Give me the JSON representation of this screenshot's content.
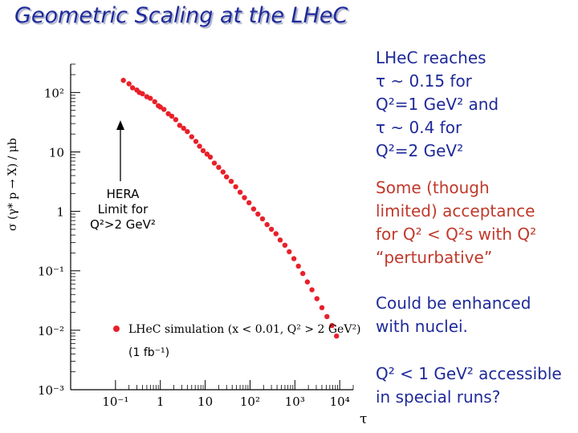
{
  "title": "Geometric Scaling at the LHeC",
  "notes": {
    "reach_lines": [
      "LHeC reaches",
      "τ ~ 0.15 for",
      "Q²=1 GeV² and",
      "τ ~ 0.4 for",
      "Q²=2 GeV²"
    ],
    "acceptance_lines": [
      "Some (though",
      "limited) acceptance",
      "for Q² < Q²s with Q²",
      "“perturbative”"
    ],
    "nuclei_lines": [
      "Could be enhanced",
      "with nuclei."
    ],
    "special_runs_lines": [
      "Q² < 1 GeV² accessible",
      "in special runs?"
    ]
  },
  "hera_label_lines": [
    "HERA",
    "Limit for",
    "Q²>2 GeV²"
  ],
  "luminosity_label": "(1 fb⁻¹)",
  "colors": {
    "title": "#1f2a9a",
    "accent_red": "#c0392b",
    "markers": "#e8202a"
  },
  "chart_data": {
    "type": "scatter",
    "xlabel": "τ",
    "ylabel": "σ (γ* p → X) / μb",
    "xscale": "log",
    "yscale": "log",
    "xlim": [
      0.01,
      20000
    ],
    "ylim": [
      0.001,
      300
    ],
    "x_ticks": [
      "10⁻¹",
      "1",
      "10",
      "10²",
      "10³",
      "10⁴"
    ],
    "y_ticks": [
      "10⁻³",
      "10⁻²",
      "10⁻¹",
      "1",
      "10",
      "10²"
    ],
    "legend": {
      "label": "LHeC simulation (x < 0.01, Q² > 2 GeV²)",
      "position": "bottom-left"
    },
    "series": [
      {
        "name": "LHeC simulation (x < 0.01, Q² > 2 GeV²)",
        "points": [
          [
            0.15,
            160
          ],
          [
            0.2,
            140
          ],
          [
            0.24,
            120
          ],
          [
            0.3,
            110
          ],
          [
            0.34,
            100
          ],
          [
            0.4,
            95
          ],
          [
            0.5,
            85
          ],
          [
            0.6,
            80
          ],
          [
            0.75,
            70
          ],
          [
            0.9,
            60
          ],
          [
            1.0,
            57
          ],
          [
            1.2,
            52
          ],
          [
            1.5,
            44
          ],
          [
            1.8,
            40
          ],
          [
            2.2,
            35
          ],
          [
            2.7,
            28
          ],
          [
            3.3,
            25
          ],
          [
            4.0,
            22
          ],
          [
            5.0,
            18
          ],
          [
            6.2,
            15
          ],
          [
            7.5,
            12.5
          ],
          [
            9.0,
            10.5
          ],
          [
            11,
            9.2
          ],
          [
            13,
            8.2
          ],
          [
            16,
            6.5
          ],
          [
            20,
            5.5
          ],
          [
            25,
            4.6
          ],
          [
            30,
            3.8
          ],
          [
            38,
            3.2
          ],
          [
            48,
            2.6
          ],
          [
            60,
            2.1
          ],
          [
            75,
            1.7
          ],
          [
            95,
            1.4
          ],
          [
            120,
            1.1
          ],
          [
            150,
            0.9
          ],
          [
            190,
            0.75
          ],
          [
            240,
            0.6
          ],
          [
            300,
            0.5
          ],
          [
            380,
            0.42
          ],
          [
            470,
            0.33
          ],
          [
            600,
            0.27
          ],
          [
            750,
            0.21
          ],
          [
            950,
            0.16
          ],
          [
            1200,
            0.12
          ],
          [
            1500,
            0.09
          ],
          [
            1900,
            0.065
          ],
          [
            2400,
            0.048
          ],
          [
            3100,
            0.034
          ],
          [
            4000,
            0.024
          ],
          [
            5200,
            0.017
          ],
          [
            6700,
            0.012
          ],
          [
            8500,
            0.008
          ]
        ]
      }
    ]
  }
}
